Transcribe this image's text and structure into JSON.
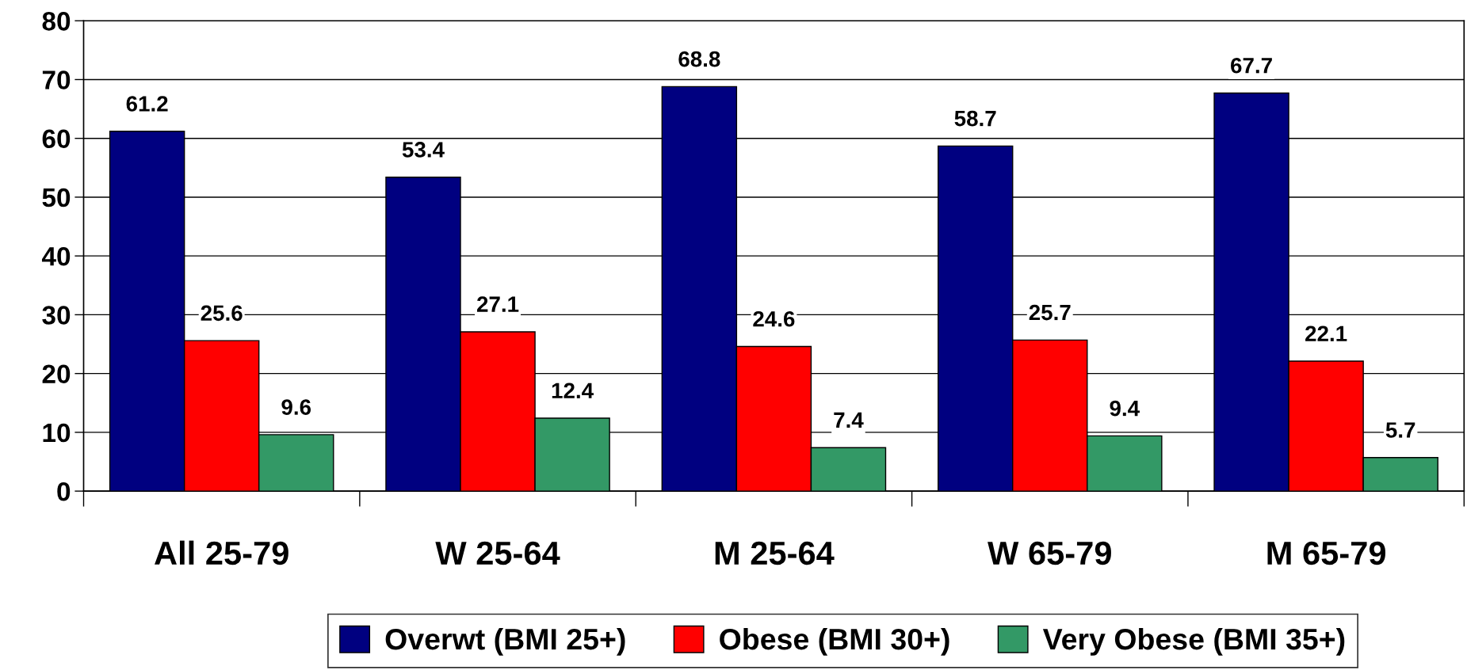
{
  "chart_data": {
    "type": "bar",
    "categories": [
      "All 25-79",
      "W 25-64",
      "M 25-64",
      "W 65-79",
      "M 65-79"
    ],
    "series": [
      {
        "name": "Overwt (BMI 25+)",
        "color": "#000080",
        "values": [
          61.2,
          53.4,
          68.8,
          58.7,
          67.7
        ]
      },
      {
        "name": "Obese (BMI 30+)",
        "color": "#ff0000",
        "values": [
          25.6,
          27.1,
          24.6,
          25.7,
          22.1
        ]
      },
      {
        "name": "Very Obese (BMI 35+)",
        "color": "#339966",
        "values": [
          9.6,
          12.4,
          7.4,
          9.4,
          5.7
        ]
      }
    ],
    "ylim": [
      0,
      80
    ],
    "yticks": [
      0,
      10,
      20,
      30,
      40,
      50,
      60,
      70,
      80
    ],
    "grid": "y",
    "legend": "bottom",
    "data_labels": true
  }
}
